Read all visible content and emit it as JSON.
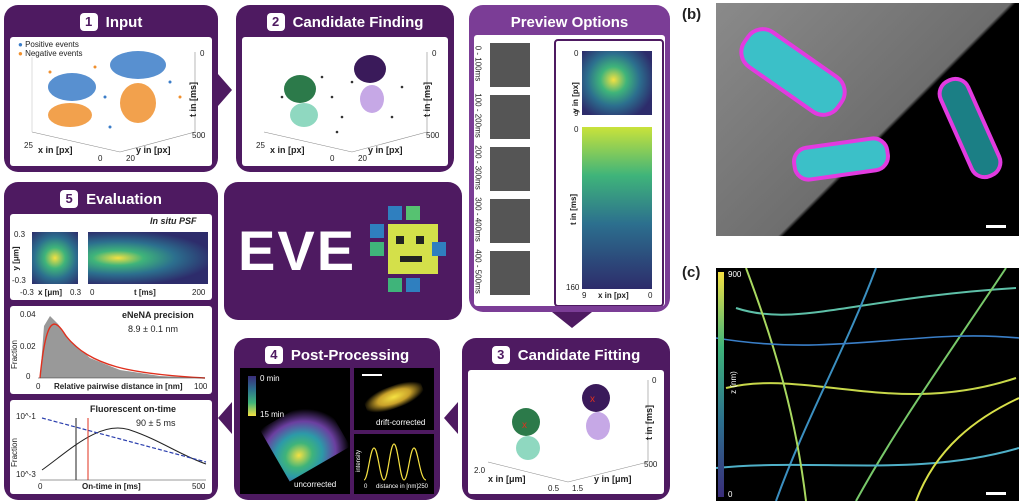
{
  "panel1": {
    "num": "1",
    "title": "Input",
    "legend": [
      "Positive events",
      "Negative events"
    ],
    "xaxis": "x in [px]",
    "yaxis": "y in [px]",
    "taxis": "t in [ms]",
    "ticks": {
      "x0": "25",
      "x1": "0",
      "y0": "0",
      "y1": "20",
      "t0": "0",
      "t1": "500"
    }
  },
  "panel2": {
    "num": "2",
    "title": "Candidate Finding",
    "xaxis": "x in [px]",
    "yaxis": "y in [px]",
    "taxis": "t in [ms]",
    "ticks": {
      "x0": "25",
      "x1": "0",
      "y0": "0",
      "y1": "20",
      "t0": "0",
      "t1": "500"
    }
  },
  "panel_preview": {
    "title": "Preview Options",
    "rows": [
      "0 - 100ms",
      "100 - 200ms",
      "200 - 300ms",
      "300 - 400ms",
      "400 - 500ms"
    ],
    "yaxis": "y in [px]",
    "taxis": "t in [ms]",
    "xaxis": "x in [px]",
    "ticks": {
      "y0": "0",
      "y1": "9",
      "t0": "0",
      "t1": "160",
      "x0": "9",
      "x1": "0"
    }
  },
  "panel3": {
    "num": "3",
    "title": "Candidate Fitting",
    "xaxis": "x in [μm]",
    "yaxis": "y in [μm]",
    "taxis": "t in [ms]",
    "ticks": {
      "x0": "2.0",
      "x1": "0.5",
      "y0": "0",
      "y1": "1.5",
      "t0": "0",
      "t1": "500"
    }
  },
  "panel4": {
    "num": "4",
    "title": "Post-Processing",
    "time_top": "0 min",
    "time_bottom": "15 min",
    "uncorrected": "uncorrected",
    "drift": "drift-corrected",
    "intensity": "intensity",
    "distance": "distance in [nm]",
    "d0": "0",
    "d1": "250"
  },
  "panel5": {
    "num": "5",
    "title": "Evaluation",
    "psf_title": "In situ PSF",
    "psf_y": "y [μm]",
    "psf_x": "x [μm]",
    "psf_t": "t [ms]",
    "psf_ticks": {
      "y0": "0.3",
      "y1": "-0.3",
      "x0": "-0.3",
      "x1": "0.3",
      "t0": "0",
      "t1": "200"
    },
    "enena_title": "eNeNA precision",
    "enena_value": "8.9 ± 0.1 nm",
    "frac": "Fraction",
    "frac_ticks": [
      "0.04",
      "0.02",
      "0"
    ],
    "rel_dist": "Relative pairwise distance in [nm]",
    "rd0": "0",
    "rd1": "100",
    "ontime_title": "Fluorescent on-time",
    "ontime_value": "90 ± 5 ms",
    "ontime_ticks": [
      "10^-1",
      "10^-3"
    ],
    "ontime_x": "On-time in [ms]",
    "ot0": "0",
    "ot1": "500"
  },
  "logo": {
    "text": "EVE"
  },
  "panel_b": {
    "label": "(b)"
  },
  "panel_c": {
    "label": "(c)",
    "cbar_top": "900",
    "cbar_bottom": "0",
    "cbar_axis": "z (nm)"
  },
  "colors": {
    "purple": "#4e1a61",
    "light_purple": "#7b3d96",
    "blue": "#3b7dc8",
    "orange": "#f0902e",
    "green": "#2c7a4a",
    "mint": "#8fd8c0",
    "dark_purple": "#3a1a5a",
    "lilac": "#c6a8e6"
  }
}
